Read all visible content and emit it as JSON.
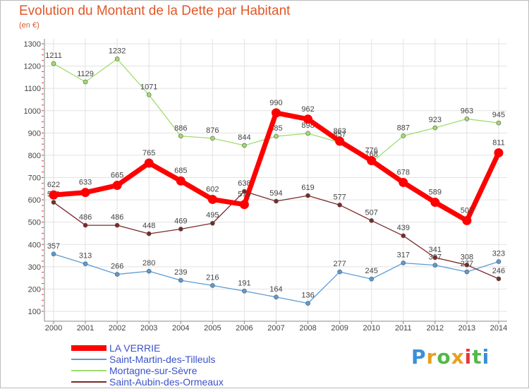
{
  "title": "Evolution du Montant de la Dette par Habitant",
  "subtitle": "(en €)",
  "brand": "Proxiti",
  "chart_data": {
    "type": "line",
    "x": [
      "2000",
      "2001",
      "2002",
      "2003",
      "2004",
      "2005",
      "2006",
      "2007",
      "2008",
      "2009",
      "2010",
      "2011",
      "2012",
      "2013",
      "2014"
    ],
    "ylim": [
      100,
      1300
    ],
    "yticks": [
      100,
      200,
      300,
      400,
      500,
      600,
      700,
      800,
      900,
      1000,
      1100,
      1200,
      1300
    ],
    "grid": true,
    "legend_position": "bottom-left",
    "series": [
      {
        "name": "Saint-Martin-des-Tilleuls",
        "color": "#5b9bd5",
        "values": [
          357,
          313,
          266,
          280,
          239,
          216,
          191,
          164,
          136,
          277,
          245,
          317,
          307,
          277,
          323
        ]
      },
      {
        "name": "Mortagne-sur-Sèvre",
        "color": "#9fde6e",
        "values": [
          1211,
          1129,
          1232,
          1071,
          886,
          876,
          844,
          885,
          898,
          857,
          768,
          887,
          923,
          963,
          945
        ]
      },
      {
        "name": "Saint-Aubin-des-Ormeaux",
        "color": "#7a2a2a",
        "values": [
          589,
          486,
          486,
          448,
          469,
          495,
          638,
          594,
          619,
          577,
          507,
          439,
          341,
          308,
          246
        ]
      },
      {
        "name": "LA VERRIE",
        "color": "#ff0000",
        "values": [
          622,
          633,
          665,
          765,
          685,
          602,
          579,
          990,
          962,
          863,
          776,
          678,
          589,
          507,
          811
        ]
      }
    ],
    "legend": [
      {
        "name": "LA VERRIE",
        "color": "#ff0000"
      },
      {
        "name": "Saint-Martin-des-Tilleuls",
        "color": "#5b9bd5"
      },
      {
        "name": "Mortagne-sur-Sèvre",
        "color": "#9fde6e"
      },
      {
        "name": "Saint-Aubin-des-Ormeaux",
        "color": "#7a2a2a"
      }
    ]
  }
}
